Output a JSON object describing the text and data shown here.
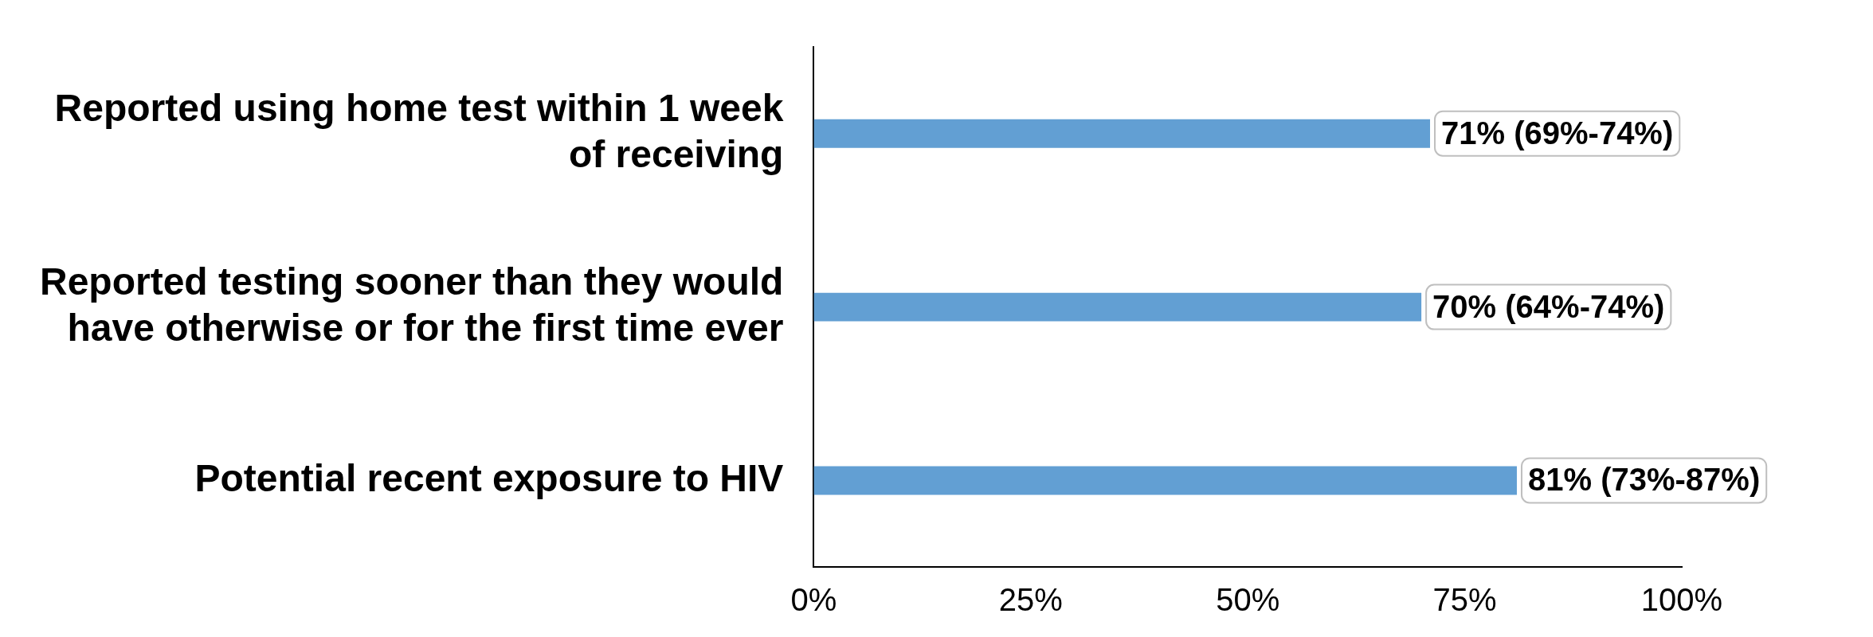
{
  "chart_data": {
    "type": "bar",
    "orientation": "horizontal",
    "categories": [
      "Reported using home test within 1 week of receiving",
      "Reported testing sooner than they would have otherwise or for the first time ever",
      "Potential recent exposure to HIV"
    ],
    "values": [
      71,
      70,
      81
    ],
    "color": "#629fd3",
    "value_labels": [
      "71% (69%-74%)",
      "70% (64%-74%)",
      "81% (73%-87%)"
    ],
    "xlim": [
      0,
      100
    ],
    "xticks": [
      {
        "value": 0,
        "label": "0%"
      },
      {
        "value": 25,
        "label": "25%"
      },
      {
        "value": 50,
        "label": "50%"
      },
      {
        "value": 75,
        "label": "75%"
      },
      {
        "value": 100,
        "label": "100%"
      }
    ],
    "grid": false,
    "legend": false
  }
}
